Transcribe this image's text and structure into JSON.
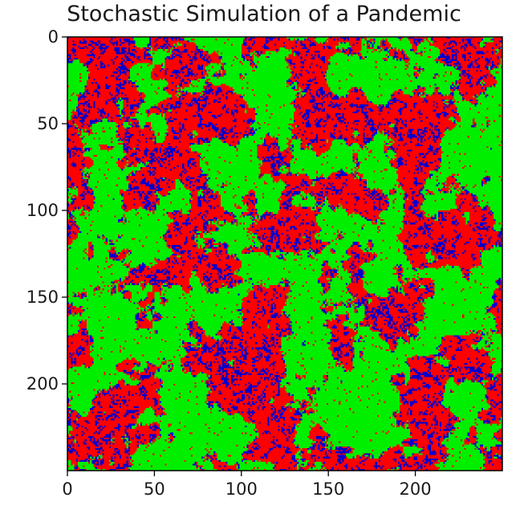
{
  "chart_data": {
    "type": "heatmap",
    "title": "Stochastic Simulation of a Pandemic",
    "xlabel": "",
    "ylabel": "",
    "grid_size": [
      250,
      250
    ],
    "xlim": [
      0,
      250
    ],
    "ylim": [
      250,
      0
    ],
    "x_ticks": [
      0,
      50,
      100,
      150,
      200
    ],
    "y_ticks": [
      0,
      50,
      100,
      150,
      200
    ],
    "grid": false,
    "legend": "none",
    "colormap": [
      "#00ee00",
      "#ff0000",
      "#0000cc"
    ],
    "approx_fractions": {
      "green": 0.36,
      "red": 0.55,
      "blue": 0.09
    }
  },
  "figure": {
    "title": "Stochastic Simulation of a Pandemic"
  }
}
